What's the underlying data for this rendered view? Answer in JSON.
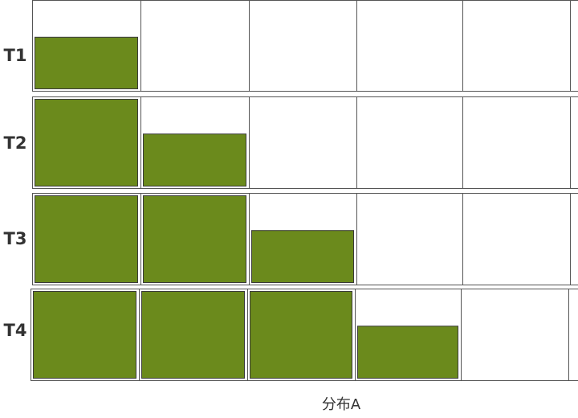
{
  "chart_data": {
    "type": "bar",
    "title": "",
    "xlabel": "分布A",
    "ylabel": "",
    "grid": true,
    "legend": "none",
    "ylim": [
      0,
      1
    ],
    "columns_visible": 5,
    "rows": [
      {
        "label": "T1",
        "values": [
          0.6
        ]
      },
      {
        "label": "T2",
        "values": [
          1.0,
          0.6
        ]
      },
      {
        "label": "T3",
        "values": [
          1.0,
          1.0,
          0.6
        ]
      },
      {
        "label": "T4",
        "values": [
          1.0,
          1.0,
          1.0,
          0.6
        ]
      }
    ],
    "bar_color": "#6b8a1c",
    "bar_stroke": "#3a3a3a",
    "cell_stroke": "#555555",
    "label_color": "#333333"
  }
}
